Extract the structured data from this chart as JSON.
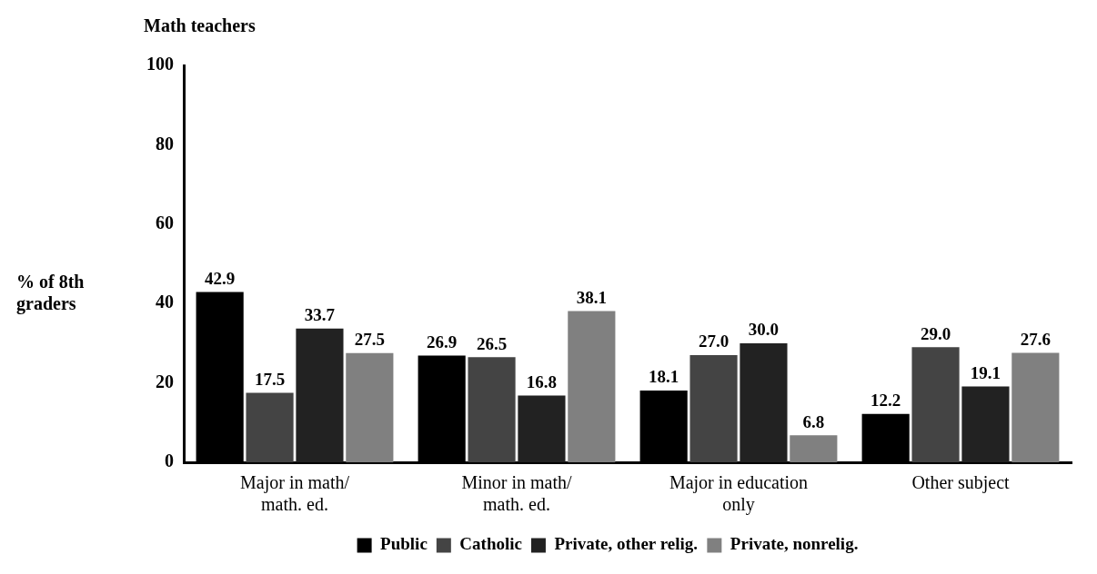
{
  "chart_data": {
    "type": "bar",
    "title": "Math teachers",
    "ylabel": "% of 8th graders",
    "categories": [
      "Major in math/ math. ed.",
      "Minor in math/ math. ed.",
      "Major in education only",
      "Other subject"
    ],
    "series": [
      {
        "name": "Public",
        "color": "#000000",
        "values": [
          42.9,
          26.9,
          18.1,
          12.2
        ],
        "value_labels": [
          "42.9",
          "26.9",
          "18.1",
          "12.2"
        ]
      },
      {
        "name": "Catholic",
        "color": "#444444",
        "values": [
          17.5,
          26.5,
          27.0,
          29.0
        ],
        "value_labels": [
          "17.5",
          "26.5",
          "27.0",
          "29.0"
        ]
      },
      {
        "name": "Private, other relig.",
        "color": "#222222",
        "values": [
          33.7,
          16.8,
          30.0,
          19.1
        ],
        "value_labels": [
          "33.7",
          "16.8",
          "30.0",
          "19.1"
        ]
      },
      {
        "name": "Private, nonrelig.",
        "color": "#808080",
        "values": [
          27.5,
          38.1,
          6.8,
          27.6
        ],
        "value_labels": [
          "27.5",
          "38.1",
          "6.8",
          "27.6"
        ]
      }
    ],
    "ylim": [
      0,
      100
    ],
    "yticks": [
      0,
      20,
      40,
      60,
      80,
      100
    ],
    "grid": false,
    "legend": "bottom"
  }
}
